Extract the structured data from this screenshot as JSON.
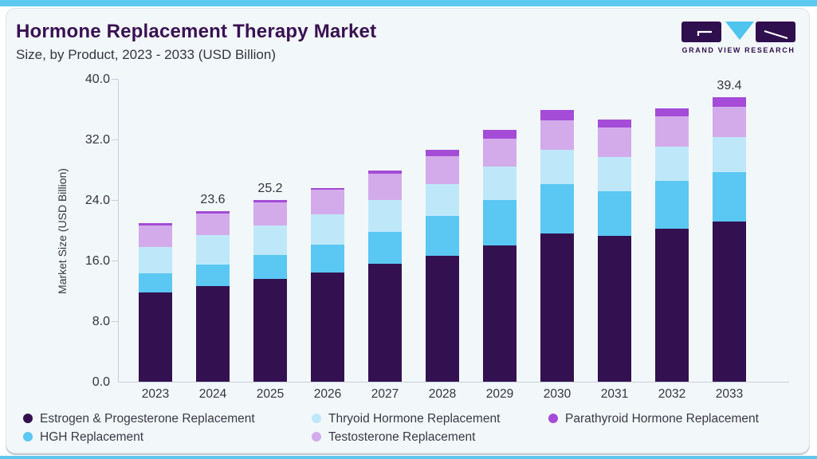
{
  "header": {
    "title": "Hormone Replacement Therapy Market",
    "subtitle": "Size, by Product, 2023 - 2033 (USD Billion)"
  },
  "logo": {
    "text": "GRAND VIEW RESEARCH"
  },
  "colors": {
    "accent_strip": "#5FC8EE",
    "card_bg": "#F2F7FA",
    "title": "#3A1152",
    "text": "#35353F",
    "axis_line": "#C9CFD6",
    "logo_dark": "#2F0F4D",
    "logo_cyan": "#4FC4EE"
  },
  "chart_data": {
    "type": "bar",
    "stacked": true,
    "title": "Hormone Replacement Therapy Market Size, by Product, 2023 - 2033 (USD Billion)",
    "xlabel": "",
    "ylabel": "Market Size (USD Billion)",
    "ylim": [
      0,
      40
    ],
    "ytick_labels": [
      "40.0",
      "32.0",
      "24.0",
      "16.0",
      "8.0",
      "0.0"
    ],
    "grid": false,
    "legend_position": "bottom",
    "categories": [
      "2023",
      "2024",
      "2025",
      "2026",
      "2027",
      "2028",
      "2029",
      "2030",
      "2031",
      "2032",
      "2033"
    ],
    "series": [
      {
        "name": "Estrogen & Progesterone Replacement",
        "color": "#331150",
        "values": [
          12.4,
          13.3,
          14.2,
          15.1,
          16.3,
          17.5,
          18.9,
          20.5,
          20.2,
          21.2,
          22.2
        ]
      },
      {
        "name": "HGH Replacement",
        "color": "#5BC7F3",
        "values": [
          2.6,
          2.9,
          3.4,
          3.9,
          4.5,
          5.5,
          6.3,
          6.9,
          6.2,
          6.7,
          6.9
        ]
      },
      {
        "name": "Thryoid Hormone Replacement",
        "color": "#BEE8FA",
        "values": [
          3.7,
          4.1,
          4.1,
          4.2,
          4.4,
          4.4,
          4.6,
          4.7,
          4.8,
          4.7,
          4.8
        ]
      },
      {
        "name": "Testosterone Replacement",
        "color": "#D3ABEB",
        "values": [
          3.0,
          3.0,
          3.2,
          3.4,
          3.6,
          3.9,
          3.9,
          4.1,
          4.1,
          4.2,
          4.2
        ]
      },
      {
        "name": "Parathyroid Hormone Replacement",
        "color": "#A44CD7",
        "values": [
          0.3,
          0.3,
          0.3,
          0.3,
          0.5,
          0.9,
          1.2,
          1.5,
          1.1,
          1.1,
          1.3
        ]
      }
    ],
    "totals": [
      22.0,
      23.6,
      25.2,
      26.9,
      29.3,
      32.2,
      34.9,
      37.7,
      36.4,
      37.9,
      39.4
    ],
    "bar_total_labels": {
      "2024": "23.6",
      "2025": "25.2",
      "2033": "39.4"
    }
  }
}
